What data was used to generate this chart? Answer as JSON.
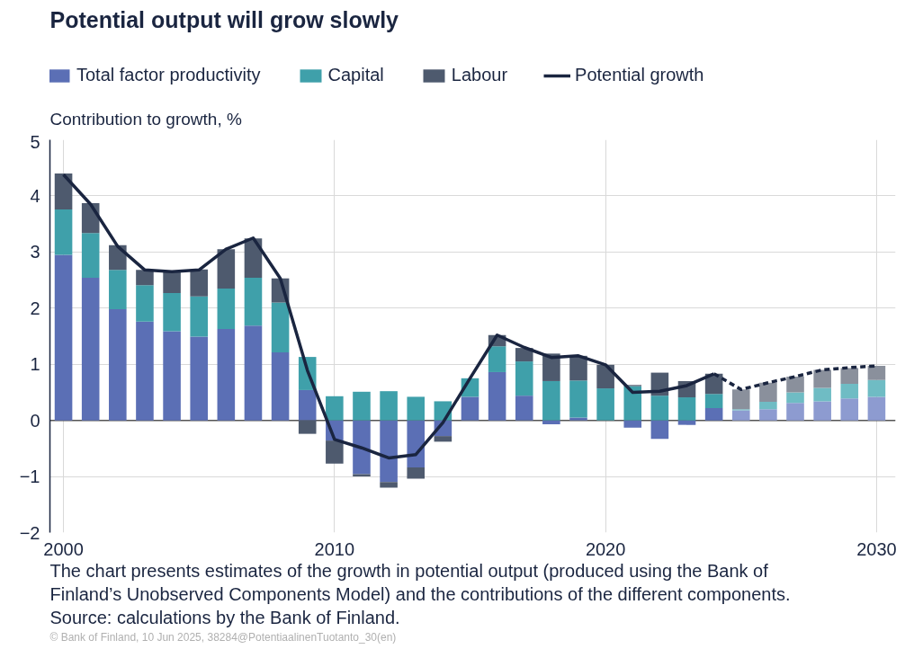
{
  "chart_data": {
    "type": "bar",
    "stacked": true,
    "title": "Potential output will grow slowly",
    "ylabel": "Contribution to growth, %",
    "x": [
      2000,
      2001,
      2002,
      2003,
      2004,
      2005,
      2006,
      2007,
      2008,
      2009,
      2010,
      2011,
      2012,
      2013,
      2014,
      2015,
      2016,
      2017,
      2018,
      2019,
      2020,
      2021,
      2022,
      2023,
      2024,
      2025,
      2026,
      2027,
      2028,
      2029,
      2030
    ],
    "xlim": [
      1999.5,
      2030.7
    ],
    "xticks": [
      2000,
      2010,
      2020,
      2030
    ],
    "ylim": [
      -2,
      5
    ],
    "yticks": [
      -2,
      -1,
      0,
      1,
      2,
      3,
      4,
      5
    ],
    "grid": true,
    "legend": "top",
    "series": [
      {
        "name": "Total factor productivity",
        "color": "#5b6fb5",
        "colors": [
          "#5b6fb5",
          "#5b6fb5",
          "#5b6fb5",
          "#5b6fb5",
          "#5b6fb5",
          "#5b6fb5",
          "#5b6fb5",
          "#5b6fb5",
          "#5b6fb5",
          "#5b6fb5",
          "#5b6fb5",
          "#5b6fb5",
          "#5b6fb5",
          "#5b6fb5",
          "#5b6fb5",
          "#5b6fb5",
          "#5b6fb5",
          "#5b6fb5",
          "#5b6fb5",
          "#5b6fb5",
          "#5b6fb5",
          "#5b6fb5",
          "#5b6fb5",
          "#5b6fb5",
          "#5b6fb5",
          "#8d9bd0",
          "#8d9bd0",
          "#8d9bd0",
          "#8d9bd0",
          "#8d9bd0",
          "#8d9bd0"
        ],
        "values": [
          2.95,
          2.54,
          1.98,
          1.76,
          1.59,
          1.49,
          1.63,
          1.69,
          1.21,
          0.54,
          -0.36,
          -0.96,
          -1.1,
          -0.84,
          -0.28,
          0.42,
          0.86,
          0.44,
          -0.07,
          0.05,
          0.0,
          -0.13,
          -0.33,
          -0.08,
          0.22,
          0.18,
          0.2,
          0.31,
          0.34,
          0.39,
          0.42
        ]
      },
      {
        "name": "Capital",
        "color": "#3fa0aa",
        "colors": [
          "#3fa0aa",
          "#3fa0aa",
          "#3fa0aa",
          "#3fa0aa",
          "#3fa0aa",
          "#3fa0aa",
          "#3fa0aa",
          "#3fa0aa",
          "#3fa0aa",
          "#3fa0aa",
          "#3fa0aa",
          "#3fa0aa",
          "#3fa0aa",
          "#3fa0aa",
          "#3fa0aa",
          "#3fa0aa",
          "#3fa0aa",
          "#3fa0aa",
          "#3fa0aa",
          "#3fa0aa",
          "#3fa0aa",
          "#3fa0aa",
          "#3fa0aa",
          "#3fa0aa",
          "#3fa0aa",
          "#6fbcc4",
          "#6fbcc4",
          "#6fbcc4",
          "#6fbcc4",
          "#6fbcc4",
          "#6fbcc4"
        ],
        "values": [
          0.81,
          0.8,
          0.7,
          0.65,
          0.68,
          0.72,
          0.72,
          0.85,
          0.89,
          0.59,
          0.43,
          0.51,
          0.52,
          0.42,
          0.34,
          0.33,
          0.46,
          0.61,
          0.7,
          0.66,
          0.57,
          0.61,
          0.44,
          0.41,
          0.25,
          0.02,
          0.13,
          0.19,
          0.24,
          0.26,
          0.3
        ]
      },
      {
        "name": "Labour",
        "color": "#4e5a6e",
        "colors": [
          "#4e5a6e",
          "#4e5a6e",
          "#4e5a6e",
          "#4e5a6e",
          "#4e5a6e",
          "#4e5a6e",
          "#4e5a6e",
          "#4e5a6e",
          "#4e5a6e",
          "#4e5a6e",
          "#4e5a6e",
          "#4e5a6e",
          "#4e5a6e",
          "#4e5a6e",
          "#4e5a6e",
          "#4e5a6e",
          "#4e5a6e",
          "#4e5a6e",
          "#4e5a6e",
          "#4e5a6e",
          "#4e5a6e",
          "#4e5a6e",
          "#4e5a6e",
          "#4e5a6e",
          "#4e5a6e",
          "#8a909c",
          "#8a909c",
          "#8a909c",
          "#8a909c",
          "#8a909c",
          "#8a909c"
        ],
        "values": [
          0.64,
          0.53,
          0.44,
          0.27,
          0.37,
          0.48,
          0.7,
          0.7,
          0.43,
          -0.24,
          -0.41,
          -0.04,
          -0.1,
          -0.2,
          -0.1,
          0.0,
          0.2,
          0.24,
          0.49,
          0.44,
          0.42,
          0.02,
          0.41,
          0.29,
          0.36,
          0.35,
          0.34,
          0.28,
          0.32,
          0.28,
          0.25
        ]
      },
      {
        "name": "Potential growth",
        "type": "line",
        "color": "#1a2540",
        "line_style": "solid",
        "x": [
          2000,
          2001,
          2002,
          2003,
          2004,
          2005,
          2006,
          2007,
          2008,
          2009,
          2010,
          2011,
          2012,
          2013,
          2014,
          2015,
          2016,
          2017,
          2018,
          2019,
          2020,
          2021,
          2022,
          2023,
          2024
        ],
        "values": [
          4.38,
          3.85,
          3.1,
          2.68,
          2.65,
          2.68,
          3.05,
          3.25,
          2.53,
          0.89,
          -0.34,
          -0.49,
          -0.67,
          -0.61,
          -0.04,
          0.75,
          1.52,
          1.3,
          1.12,
          1.15,
          0.99,
          0.5,
          0.52,
          0.62,
          0.83
        ]
      },
      {
        "type": "line",
        "color": "#1a2540",
        "line_style": "dashed",
        "x": [
          2024,
          2025,
          2026,
          2027,
          2028,
          2029,
          2030
        ],
        "values": [
          0.83,
          0.55,
          0.67,
          0.78,
          0.9,
          0.94,
          0.97
        ]
      }
    ],
    "annotations": [
      "The chart presents estimates of the growth in potential output (produced using the Bank of",
      "Finland’s Unobserved Components Model) and the contributions of the different components.",
      "Source: calculations by the Bank of Finland.",
      "© Bank of Finland, 10 Jun 2025, 38284@PotentiaalinenTuotanto_30(en)"
    ]
  }
}
